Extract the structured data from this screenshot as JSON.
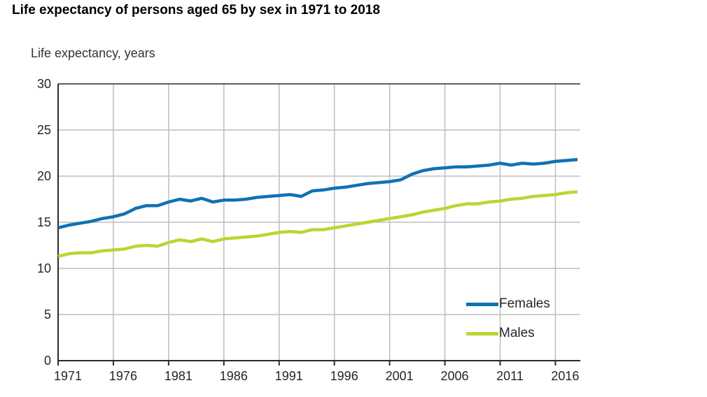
{
  "chart_data": {
    "type": "line",
    "title": "Life expectancy of persons aged 65 by sex in 1971 to 2018",
    "ylabel": "Life expectancy, years",
    "xlabel": "",
    "ylim": [
      0,
      30
    ],
    "x_range": [
      1971,
      2018
    ],
    "y_ticks": [
      0,
      5,
      10,
      15,
      20,
      25,
      30
    ],
    "x_ticks": [
      1971,
      1976,
      1981,
      1986,
      1991,
      1996,
      2001,
      2006,
      2011,
      2016
    ],
    "grid": true,
    "legend_position": "inside-bottom-right",
    "x": [
      1971,
      1972,
      1973,
      1974,
      1975,
      1976,
      1977,
      1978,
      1979,
      1980,
      1981,
      1982,
      1983,
      1984,
      1985,
      1986,
      1987,
      1988,
      1989,
      1990,
      1991,
      1992,
      1993,
      1994,
      1995,
      1996,
      1997,
      1998,
      1999,
      2000,
      2001,
      2002,
      2003,
      2004,
      2005,
      2006,
      2007,
      2008,
      2009,
      2010,
      2011,
      2012,
      2013,
      2014,
      2015,
      2016,
      2017,
      2018
    ],
    "series": [
      {
        "name": "Females",
        "color": "#0f72b2",
        "values": [
          14.4,
          14.7,
          14.9,
          15.1,
          15.4,
          15.6,
          15.9,
          16.5,
          16.8,
          16.8,
          17.2,
          17.5,
          17.3,
          17.6,
          17.2,
          17.4,
          17.4,
          17.5,
          17.7,
          17.8,
          17.9,
          18.0,
          17.8,
          18.4,
          18.5,
          18.7,
          18.8,
          19.0,
          19.2,
          19.3,
          19.4,
          19.6,
          20.2,
          20.6,
          20.8,
          20.9,
          21.0,
          21.0,
          21.1,
          21.2,
          21.4,
          21.2,
          21.4,
          21.3,
          21.4,
          21.6,
          21.7,
          21.8
        ]
      },
      {
        "name": "Males",
        "color": "#bcd531",
        "values": [
          11.3,
          11.6,
          11.7,
          11.7,
          11.9,
          12.0,
          12.1,
          12.4,
          12.5,
          12.4,
          12.8,
          13.1,
          12.9,
          13.2,
          12.9,
          13.2,
          13.3,
          13.4,
          13.5,
          13.7,
          13.9,
          14.0,
          13.9,
          14.2,
          14.2,
          14.4,
          14.6,
          14.8,
          15.0,
          15.2,
          15.4,
          15.6,
          15.8,
          16.1,
          16.3,
          16.5,
          16.8,
          17.0,
          17.0,
          17.2,
          17.3,
          17.5,
          17.6,
          17.8,
          17.9,
          18.0,
          18.2,
          18.3
        ]
      }
    ],
    "colors": {
      "grid": "#bdbdbd",
      "axis": "#2b2b2b",
      "tick_text": "#262626",
      "background": "#ffffff"
    }
  }
}
